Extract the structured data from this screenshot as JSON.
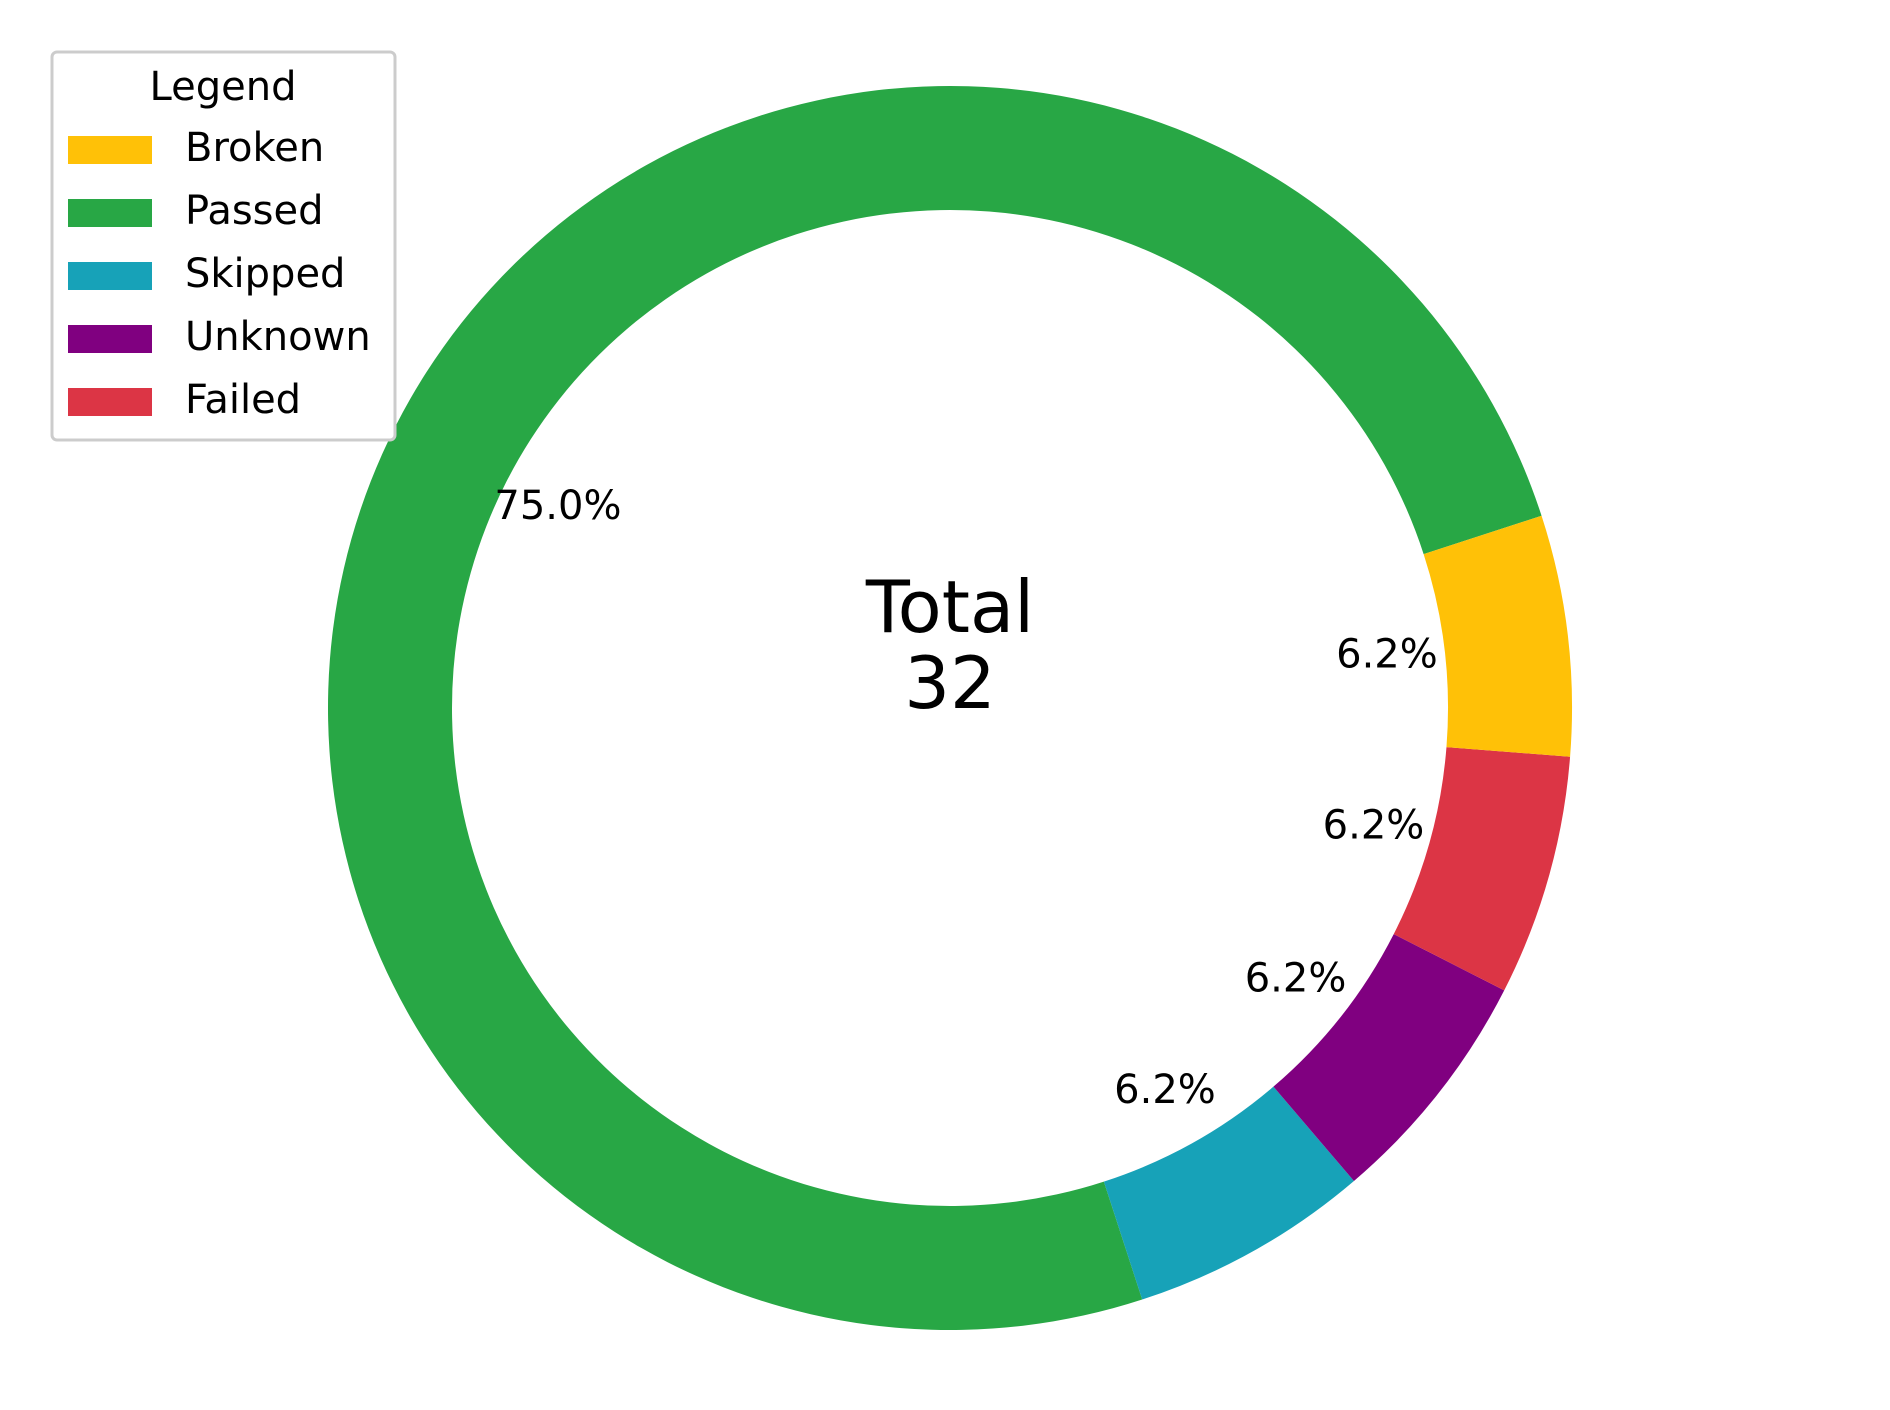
{
  "chart_data": {
    "type": "pie",
    "style": "donut",
    "legend_title": "Legend",
    "legend_placement": "top-left",
    "center_label": {
      "line1": "Total",
      "line2": "32"
    },
    "slices": [
      {
        "name": "Passed",
        "value": 24,
        "pct_label": "75.0%",
        "color": "#28a745"
      },
      {
        "name": "Skipped",
        "value": 2,
        "pct_label": "6.2%",
        "color": "#17a2b8"
      },
      {
        "name": "Unknown",
        "value": 2,
        "pct_label": "6.2%",
        "color": "#800080"
      },
      {
        "name": "Failed",
        "value": 2,
        "pct_label": "6.2%",
        "color": "#dc3545"
      },
      {
        "name": "Broken",
        "value": 2,
        "pct_label": "6.2%",
        "color": "#ffc107"
      }
    ],
    "legend_order": [
      "Broken",
      "Passed",
      "Skipped",
      "Unknown",
      "Failed"
    ]
  }
}
